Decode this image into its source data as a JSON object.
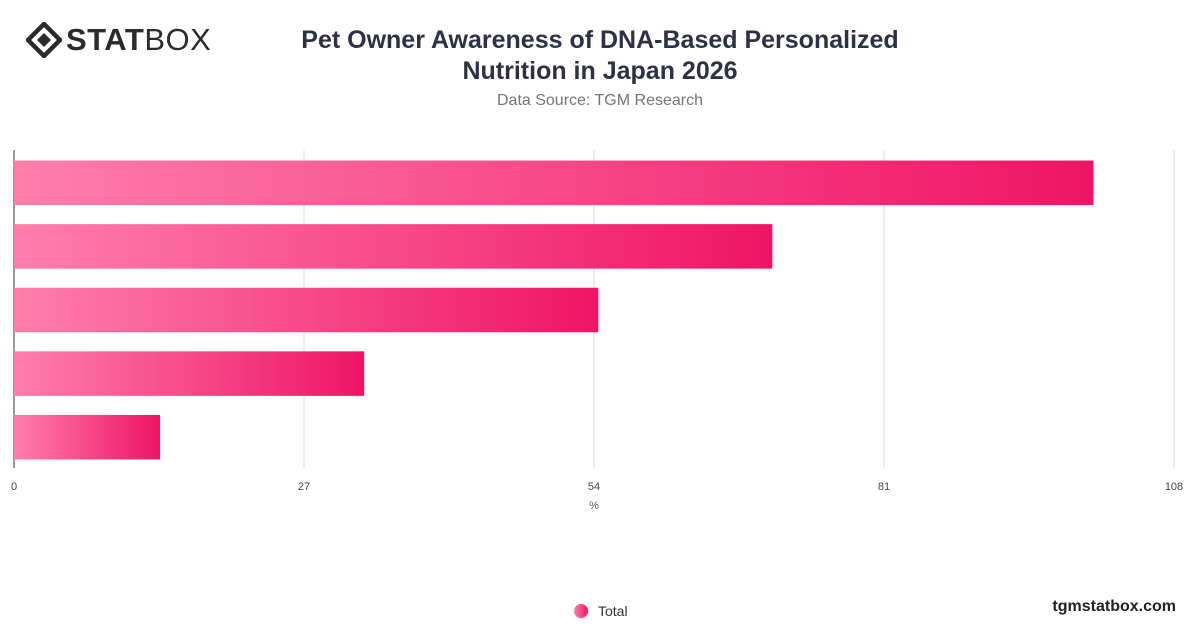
{
  "brand": {
    "logo_bold": "STAT",
    "logo_light": "BOX",
    "website": "tgmstatbox.com"
  },
  "header": {
    "title_line1": "Pet Owner Awareness of DNA-Based Personalized",
    "title_line2": "Nutrition in Japan 2026",
    "subtitle": "Data Source: TGM Research"
  },
  "legend": {
    "label": "Total"
  },
  "colors": {
    "bar_gradient_start": "#ff7eab",
    "bar_gradient_end": "#ef1466",
    "title": "#2f3046",
    "grid": "#dddddd"
  },
  "chart_data": {
    "type": "bar",
    "orientation": "horizontal",
    "categories": [
      "",
      "",
      "",
      "",
      ""
    ],
    "series": [
      {
        "name": "Total",
        "values": [
          100.5,
          70.6,
          54.4,
          32.6,
          13.6
        ]
      }
    ],
    "xlabel": "%",
    "xticks": [
      0,
      27,
      54,
      81,
      108
    ],
    "xlim": [
      0,
      108
    ],
    "grid": true,
    "legend_position": "bottom"
  }
}
